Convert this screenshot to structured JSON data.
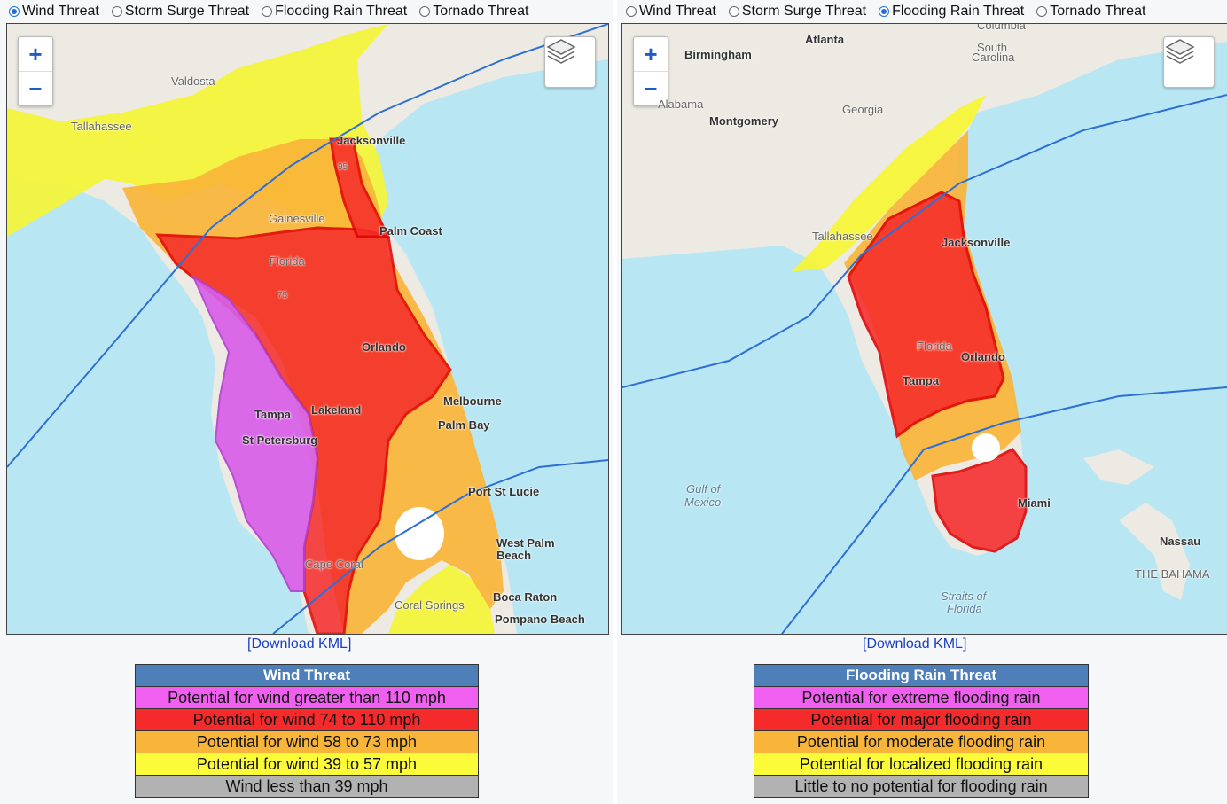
{
  "colors": {
    "header": "#4f7fb8",
    "extreme": "#f05ff0",
    "high": "#f52a2a",
    "moderate": "#f9b43a",
    "elevated": "#fbfb3a",
    "low": "#b2b2b2",
    "water": "#b8e6f3",
    "land": "#eceae2",
    "selected": "#1f6fd6"
  },
  "threat_options": [
    "Wind Threat",
    "Storm Surge Threat",
    "Flooding Rain Threat",
    "Tornado Threat"
  ],
  "left": {
    "selected": "Wind Threat",
    "radio": [
      "Wind Threat",
      "Storm Surge Threat",
      "Flooding Rain Threat",
      "Tornado Threat"
    ],
    "zoom_in": "+",
    "zoom_out": "−",
    "layers_icon": "layers-icon",
    "places": [
      "Valdosta",
      "Tallahassee",
      "Jacksonville",
      "Gainesville",
      "Palm Coast",
      "Florida",
      "75",
      "Orlando",
      "Melbourne",
      "Palm Bay",
      "Tampa",
      "Lakeland",
      "St Petersburg",
      "Port St Lucie",
      "West Palm",
      "Beach",
      "Cape Coral",
      "Coral Springs",
      "Boca Raton",
      "Pompano Beach",
      "95"
    ],
    "download": "[Download KML]",
    "legend": {
      "title": "Wind Threat",
      "rows": [
        "Potential for wind greater than 110 mph",
        "Potential for wind 74 to 110 mph",
        "Potential for wind 58 to 73 mph",
        "Potential for wind 39 to 57 mph",
        "Wind less than 39 mph"
      ]
    }
  },
  "right": {
    "selected": "Flooding Rain Threat",
    "radio": [
      "Wind Threat",
      "Storm Surge Threat",
      "Flooding Rain Threat",
      "Tornado Threat"
    ],
    "zoom_in": "+",
    "zoom_out": "−",
    "layers_icon": "layers-icon",
    "places": [
      "Atlanta",
      "Birmingham",
      "Columbia",
      "South",
      "Carolina",
      "Alabama",
      "Montgomery",
      "Georgia",
      "Tallahassee",
      "Jacksonville",
      "Florida",
      "Orlando",
      "Tampa",
      "Gulf of",
      "Mexico",
      "Miami",
      "Nassau",
      "THE BAHAMA",
      "Straits of",
      "Florida"
    ],
    "download": "[Download KML]",
    "legend": {
      "title": "Flooding Rain Threat",
      "rows": [
        "Potential for extreme flooding rain",
        "Potential for major flooding rain",
        "Potential for moderate flooding rain",
        "Potential for localized flooding rain",
        "Little to no potential for flooding rain"
      ]
    }
  }
}
